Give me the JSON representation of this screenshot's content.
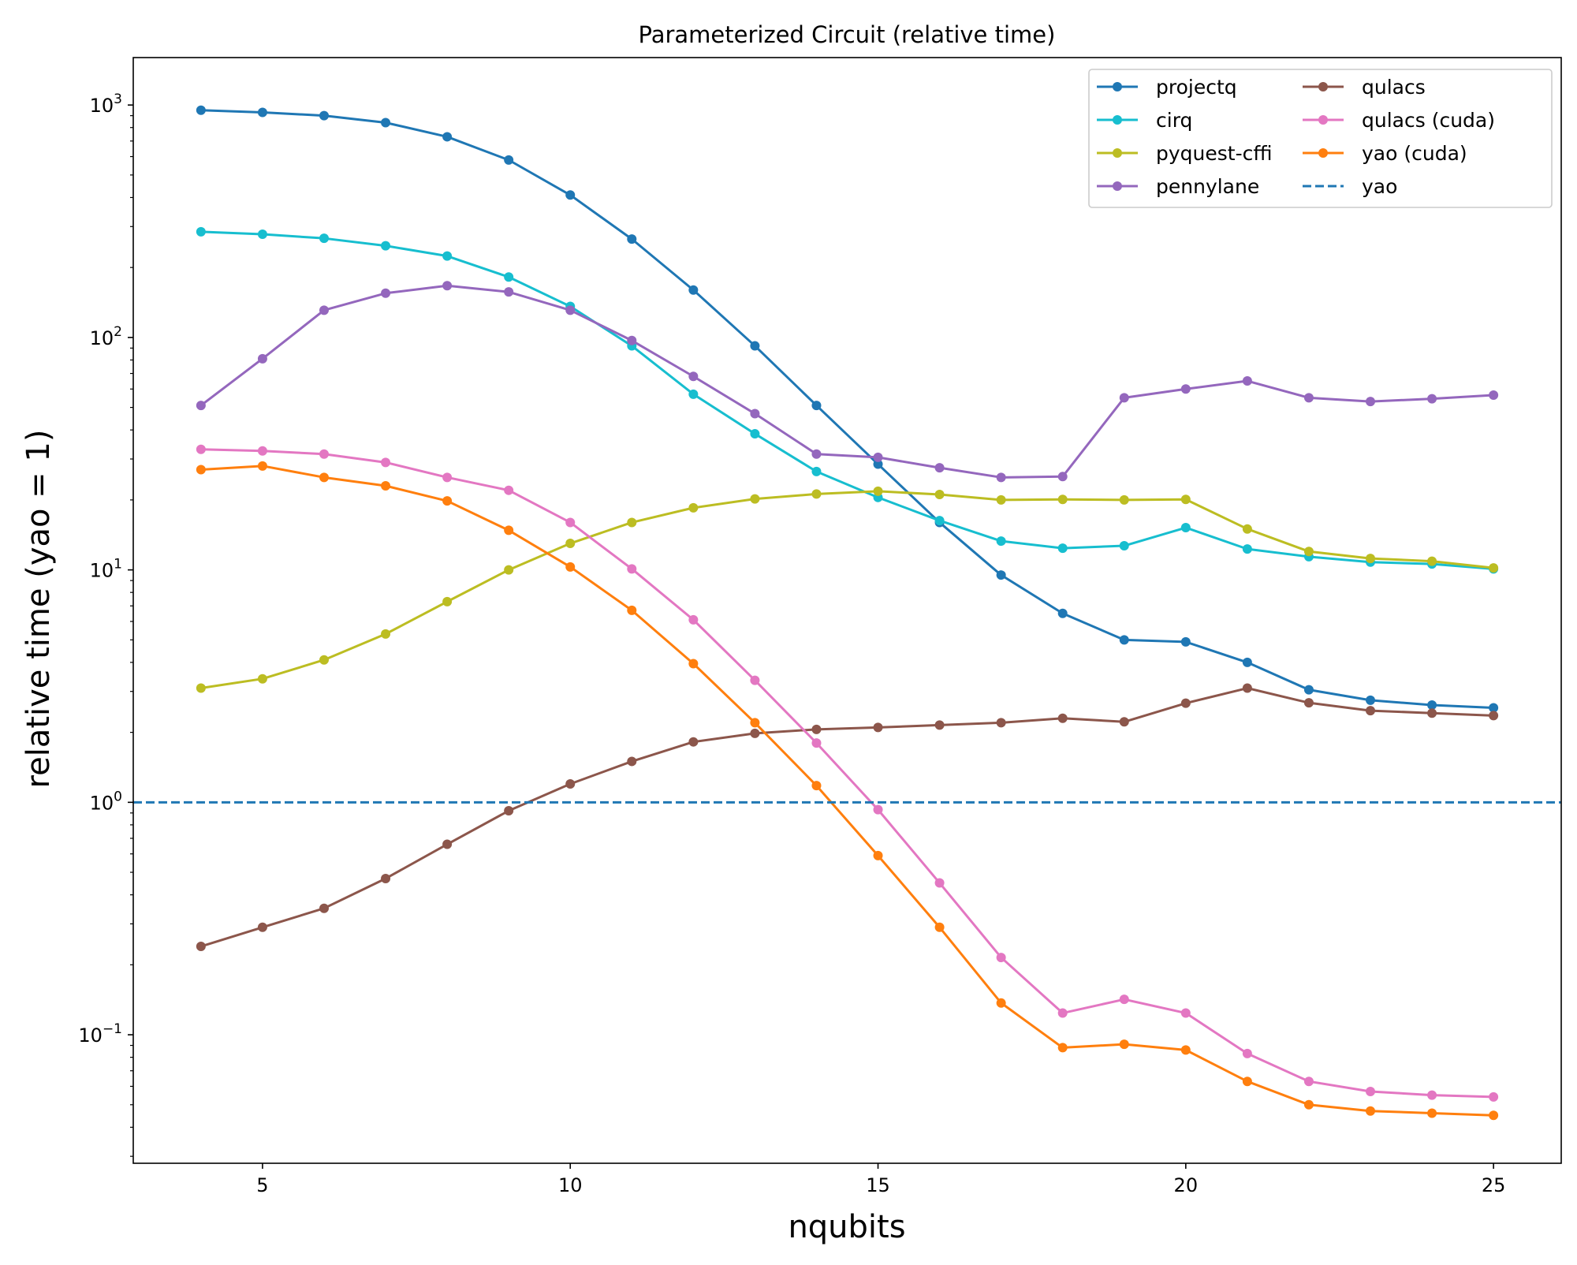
{
  "chart_data": {
    "type": "line",
    "title": "Parameterized Circuit (relative time)",
    "xlabel": "nqubits",
    "ylabel": "relative time (yao = 1)",
    "yscale": "log",
    "xlim": [
      2.9,
      26.1
    ],
    "ylim": [
      0.028,
      1600
    ],
    "xticks": [
      5,
      10,
      15,
      20,
      25
    ],
    "xtick_labels": [
      "5",
      "10",
      "15",
      "20",
      "25"
    ],
    "yticks": [
      0.1,
      1,
      10,
      100,
      1000
    ],
    "ytick_labels": [
      {
        "base": "10",
        "exp": "−1"
      },
      {
        "base": "10",
        "exp": "0"
      },
      {
        "base": "10",
        "exp": "1"
      },
      {
        "base": "10",
        "exp": "2"
      },
      {
        "base": "10",
        "exp": "3"
      }
    ],
    "grid": false,
    "legend_position": "top-right",
    "legend_columns": 2,
    "x": [
      4,
      5,
      6,
      7,
      8,
      9,
      10,
      11,
      12,
      13,
      14,
      15,
      16,
      17,
      18,
      19,
      20,
      21,
      22,
      23,
      24,
      25
    ],
    "series": [
      {
        "name": "projectq",
        "color": "#1f77b4",
        "style": "line-marker",
        "values": [
          950,
          930,
          900,
          840,
          730,
          580,
          410,
          265,
          160,
          92,
          51,
          28.5,
          16,
          9.5,
          6.5,
          5.0,
          4.9,
          4.0,
          3.05,
          2.75,
          2.62,
          2.55
        ]
      },
      {
        "name": "cirq",
        "color": "#17becf",
        "style": "line-marker",
        "values": [
          285,
          278,
          267,
          248,
          224,
          182,
          136,
          92,
          57,
          38.5,
          26.5,
          20.5,
          16.3,
          13.3,
          12.4,
          12.7,
          15.2,
          12.3,
          11.4,
          10.8,
          10.6,
          10.1
        ]
      },
      {
        "name": "pyquest-cffi",
        "color": "#bcbd22",
        "style": "line-marker",
        "values": [
          3.1,
          3.4,
          4.1,
          5.3,
          7.3,
          10.0,
          13.0,
          16.0,
          18.5,
          20.2,
          21.2,
          21.8,
          21.1,
          20.0,
          20.1,
          20.0,
          20.1,
          15.0,
          12.0,
          11.2,
          10.9,
          10.2
        ]
      },
      {
        "name": "pennylane",
        "color": "#9467bd",
        "style": "line-marker",
        "values": [
          51,
          81,
          131,
          155,
          167,
          157,
          131,
          97,
          68,
          47,
          31.5,
          30.5,
          27.5,
          25.0,
          25.2,
          55,
          60,
          65,
          55,
          53,
          54.5,
          56.5
        ]
      },
      {
        "name": "qulacs",
        "color": "#8c564b",
        "style": "line-marker",
        "values": [
          0.24,
          0.29,
          0.35,
          0.47,
          0.66,
          0.92,
          1.2,
          1.5,
          1.82,
          1.98,
          2.06,
          2.1,
          2.15,
          2.2,
          2.3,
          2.22,
          2.67,
          3.1,
          2.68,
          2.48,
          2.42,
          2.36
        ]
      },
      {
        "name": "qulacs (cuda)",
        "color": "#e377c2",
        "style": "line-marker",
        "values": [
          33,
          32.5,
          31.5,
          29,
          25,
          22,
          16,
          10.1,
          6.1,
          3.35,
          1.8,
          0.93,
          0.45,
          0.215,
          0.124,
          0.142,
          0.124,
          0.083,
          0.063,
          0.057,
          0.055,
          0.054
        ]
      },
      {
        "name": "yao (cuda)",
        "color": "#ff7f0e",
        "style": "line-marker",
        "values": [
          27,
          28,
          25,
          23,
          19.8,
          14.8,
          10.3,
          6.7,
          3.95,
          2.2,
          1.18,
          0.59,
          0.29,
          0.137,
          0.088,
          0.091,
          0.086,
          0.063,
          0.05,
          0.047,
          0.046,
          0.045
        ]
      },
      {
        "name": "yao",
        "color": "#1f77b4",
        "style": "dashed",
        "constant": 1
      }
    ]
  }
}
